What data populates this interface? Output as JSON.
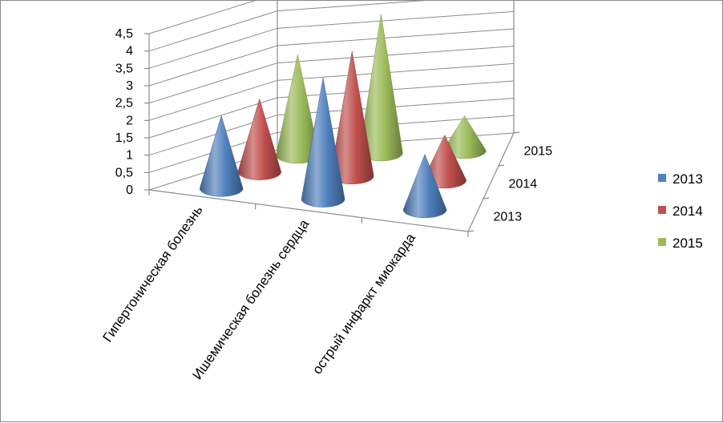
{
  "chart_data": {
    "type": "bar",
    "subtype": "3d-cone",
    "categories": [
      "Гипертоническая болезнь",
      "Ишемическая болезнь сердца",
      "острый инфаркт миокарда"
    ],
    "series": [
      {
        "name": "2013",
        "values": [
          2.1,
          3.5,
          1.6
        ],
        "color": "#4f81bd"
      },
      {
        "name": "2014",
        "values": [
          2.1,
          3.6,
          1.3
        ],
        "color": "#c0504d"
      },
      {
        "name": "2015",
        "values": [
          2.9,
          4.0,
          1.0
        ],
        "color": "#9bbb59"
      }
    ],
    "y_tick_labels": [
      "0",
      "0,5",
      "1",
      "1,5",
      "2",
      "2,5",
      "3",
      "3,5",
      "4",
      "4,5"
    ],
    "depth_labels": [
      "2013",
      "2014",
      "2015"
    ],
    "ylim": [
      0,
      4.5
    ],
    "grid": true,
    "legend_position": "right"
  }
}
